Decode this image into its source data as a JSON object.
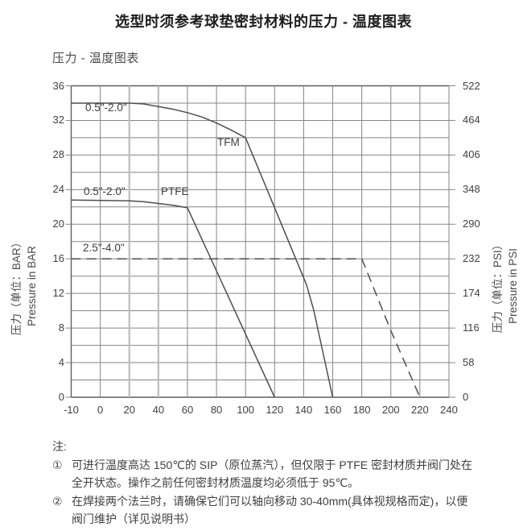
{
  "page": {
    "title": "选型时须参考球垫密封材料的压力 - 温度图表",
    "subtitle": "压力 - 温度图表"
  },
  "chart_data": {
    "type": "line",
    "title": "压力 - 温度图表",
    "x_axis": {
      "ticks": [
        -10,
        0,
        20,
        40,
        60,
        80,
        100,
        120,
        140,
        160,
        180,
        200,
        220,
        240
      ],
      "highlight_columns": [
        20,
        40
      ],
      "grid": true
    },
    "y_axis_left": {
      "title_zh": "压力（单位：BAR）",
      "title_en": "Pressure in BAR",
      "ticks": [
        0,
        4,
        8,
        12,
        16,
        20,
        24,
        28,
        32,
        36
      ],
      "range": [
        0,
        36
      ],
      "minor_step": 2
    },
    "y_axis_right": {
      "title_zh": "压力（单位：PSI）",
      "title_en": "Pressure in PSI",
      "ticks": [
        0,
        58,
        116,
        174,
        232,
        290,
        348,
        406,
        464,
        522
      ],
      "range": [
        0,
        522
      ]
    },
    "series": [
      {
        "name": "TFM",
        "size_range": "0.5\"-2.0\"",
        "line_style": "solid",
        "points": [
          [
            -10,
            34
          ],
          [
            20,
            34
          ],
          [
            30,
            33.9
          ],
          [
            40,
            33.6
          ],
          [
            50,
            33.3
          ],
          [
            60,
            32.9
          ],
          [
            70,
            32.4
          ],
          [
            80,
            31.7
          ],
          [
            90,
            30.9
          ],
          [
            100,
            30
          ],
          [
            142,
            13
          ],
          [
            147,
            10
          ],
          [
            160,
            0
          ]
        ]
      },
      {
        "name": "PTFE",
        "size_range": "0.5\"-2.0\"",
        "line_style": "solid",
        "points": [
          [
            -10,
            22.8
          ],
          [
            20,
            22.7
          ],
          [
            30,
            22.6
          ],
          [
            40,
            22.4
          ],
          [
            50,
            22.2
          ],
          [
            60,
            21.9
          ],
          [
            120,
            0
          ]
        ]
      },
      {
        "name": "2.5\"-4.0\"",
        "size_range": "2.5\"-4.0\"",
        "line_style": "dashed",
        "points": [
          [
            -10,
            16
          ],
          [
            180,
            16
          ],
          [
            200,
            7.7
          ],
          [
            220,
            0
          ]
        ]
      }
    ]
  },
  "curve_labels": {
    "tfm_size": "0.5\"-2.0\"",
    "tfm": "TFM",
    "ptfe_size": "0.5\"-2.0\"",
    "ptfe": "PTFE",
    "large_size": "2.5\"-4.0\""
  },
  "notes": {
    "heading": "注:",
    "items": [
      {
        "marker": "①",
        "text": "可进行温度高达 150℃的 SIP（原位蒸汽），但仅限于 PTFE 密封材质并阀门处在全开状态。操作之前任何密封材质温度均必须低于 95℃。"
      },
      {
        "marker": "②",
        "text": "在焊接两个法兰时，请确保它们可以轴向移动 30-40mm(具体视规格而定)，以便阀门维护（详见说明书）"
      }
    ]
  },
  "colors": {
    "curve": "#4e4e4e",
    "grid": "#858585",
    "grid_light": "#bcbcbc",
    "axis": "#5f5f5f",
    "text": "#404040",
    "title": "#1c1c1c",
    "background": "#ffffff"
  }
}
